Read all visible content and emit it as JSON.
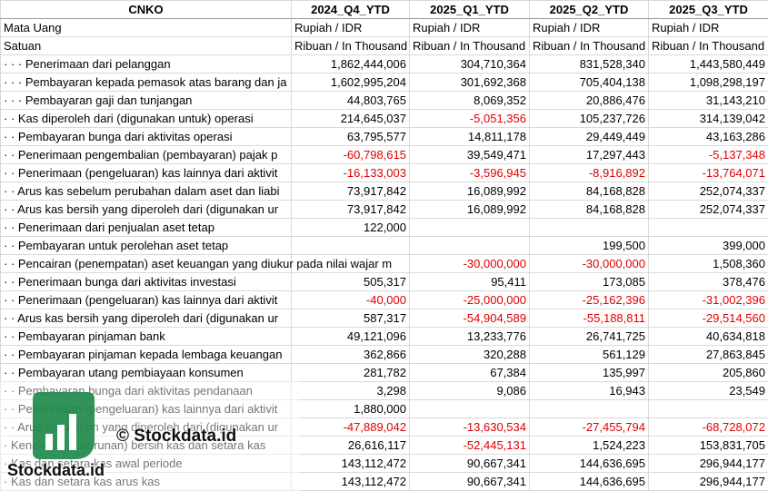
{
  "table": {
    "header": [
      "CNKO",
      "2024_Q4_YTD",
      "2025_Q1_YTD",
      "2025_Q2_YTD",
      "2025_Q3_YTD"
    ],
    "rows": [
      [
        "Mata Uang",
        "Rupiah / IDR",
        "Rupiah / IDR",
        "Rupiah / IDR",
        "Rupiah / IDR"
      ],
      [
        "Satuan",
        "Ribuan / In Thousand",
        "Ribuan / In Thousand",
        "Ribuan / In Thousand",
        "Ribuan / In Thousand"
      ],
      [
        "· · · Penerimaan dari pelanggan",
        "1,862,444,006",
        "304,710,364",
        "831,528,340",
        "1,443,580,449"
      ],
      [
        "· · · Pembayaran kepada pemasok atas barang dan ja",
        "1,602,995,204",
        "301,692,368",
        "705,404,138",
        "1,098,298,197"
      ],
      [
        "· · · Pembayaran gaji dan tunjangan",
        "44,803,765",
        "8,069,352",
        "20,886,476",
        "31,143,210"
      ],
      [
        "· · Kas diperoleh dari (digunakan untuk) operasi",
        "214,645,037",
        "-5,051,356",
        "105,237,726",
        "314,139,042"
      ],
      [
        "· · Pembayaran bunga dari aktivitas operasi",
        "63,795,577",
        "14,811,178",
        "29,449,449",
        "43,163,286"
      ],
      [
        "· · Penerimaan pengembalian (pembayaran) pajak p",
        "-60,798,615",
        "39,549,471",
        "17,297,443",
        "-5,137,348"
      ],
      [
        "· · Penerimaan (pengeluaran) kas lainnya dari aktivit",
        "-16,133,003",
        "-3,596,945",
        "-8,916,892",
        "-13,764,071"
      ],
      [
        "· · Arus kas sebelum perubahan dalam aset dan liabi",
        "73,917,842",
        "16,089,992",
        "84,168,828",
        "252,074,337"
      ],
      [
        "· · Arus kas bersih yang diperoleh dari (digunakan ur",
        "73,917,842",
        "16,089,992",
        "84,168,828",
        "252,074,337"
      ],
      [
        "· · Penerimaan dari penjualan aset tetap",
        "122,000",
        "",
        "",
        ""
      ],
      [
        "· · Pembayaran untuk perolehan aset tetap",
        "",
        "",
        "199,500",
        "399,000"
      ],
      [
        "· · Pencairan (penempatan) aset keuangan yang diukur pada nilai wajar m",
        "",
        "-30,000,000",
        "-30,000,000",
        "1,508,360"
      ],
      [
        "· · Penerimaan bunga dari aktivitas investasi",
        "505,317",
        "95,411",
        "173,085",
        "378,476"
      ],
      [
        "· · Penerimaan (pengeluaran) kas lainnya dari aktivit",
        "-40,000",
        "-25,000,000",
        "-25,162,396",
        "-31,002,396"
      ],
      [
        "· · Arus kas bersih yang diperoleh dari (digunakan ur",
        "587,317",
        "-54,904,589",
        "-55,188,811",
        "-29,514,560"
      ],
      [
        "· · Pembayaran pinjaman bank",
        "49,121,096",
        "13,233,776",
        "26,741,725",
        "40,634,818"
      ],
      [
        "· · Pembayaran pinjaman kepada lembaga keuangan",
        "362,866",
        "320,288",
        "561,129",
        "27,863,845"
      ],
      [
        "· · Pembayaran utang pembiayaan konsumen",
        "281,782",
        "67,384",
        "135,997",
        "205,860"
      ],
      [
        "· · Pembayaran bunga dari aktivitas pendanaan",
        "3,298",
        "9,086",
        "16,943",
        "23,549"
      ],
      [
        "· · Penerimaan (pengeluaran) kas lainnya dari aktivit",
        "1,880,000",
        "",
        "",
        ""
      ],
      [
        "· · Arus kas bersih yang diperoleh dari (digunakan ur",
        "-47,889,042",
        "-13,630,534",
        "-27,455,794",
        "-68,728,072"
      ],
      [
        "· Kenaikan (penurunan) bersih kas dan setara kas",
        "26,616,117",
        "-52,445,131",
        "1,524,223",
        "153,831,705"
      ],
      [
        "· Kas dan setara kas awal periode",
        "143,112,472",
        "90,667,341",
        "144,636,695",
        "296,944,177"
      ],
      [
        "· Kas dan setara kas arus kas",
        "143,112,472",
        "90,667,341",
        "144,636,695",
        "296,944,177"
      ]
    ]
  },
  "watermark": {
    "caption": "© Stockdata.id",
    "logo_text": "Stockdata.id"
  }
}
